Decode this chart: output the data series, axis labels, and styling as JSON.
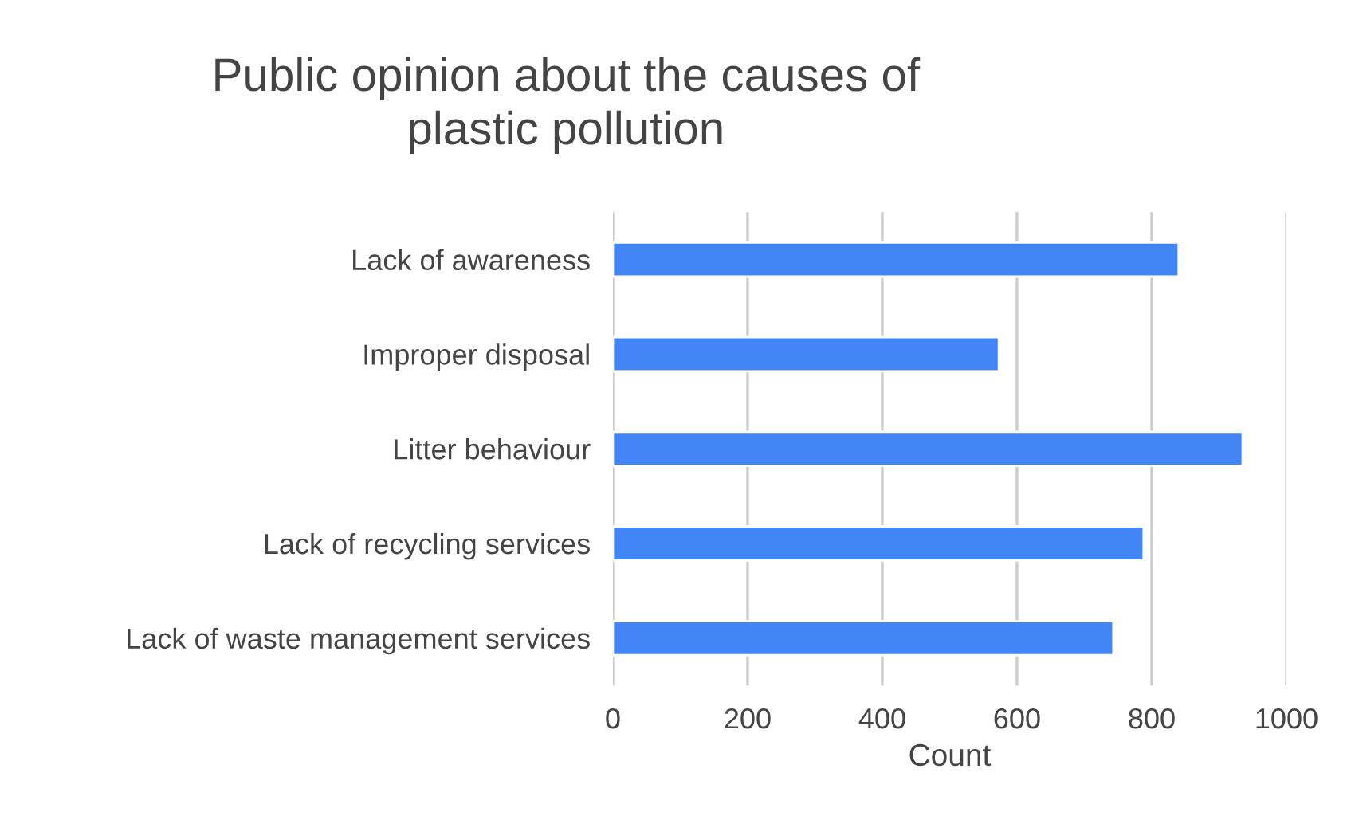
{
  "chart_data": {
    "type": "bar",
    "orientation": "horizontal",
    "title": "Public opinion about the causes of\nplastic pollution",
    "xlabel": "Count",
    "categories": [
      "Lack of awareness",
      "Improper disposal",
      "Litter behaviour",
      "Lack of recycling services",
      "Lack of waste management services"
    ],
    "values": [
      840,
      573,
      935,
      788,
      743
    ],
    "color": "#4285f4",
    "xlim": [
      0,
      1000
    ],
    "xticks": [
      0,
      200,
      400,
      600,
      800,
      1000
    ],
    "grid": "x"
  }
}
